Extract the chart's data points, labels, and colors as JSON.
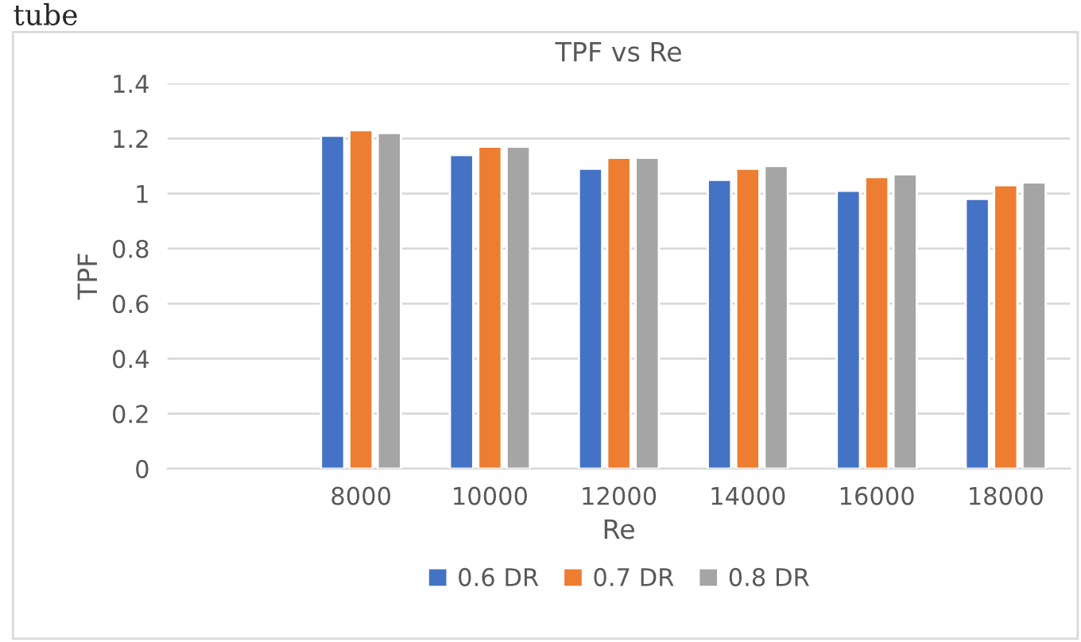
{
  "chart_data": {
    "type": "bar",
    "title": "TPF vs Re",
    "xlabel": "Re",
    "ylabel": "TPF",
    "categories": [
      null,
      "8000",
      "10000",
      "12000",
      "14000",
      "16000",
      "18000"
    ],
    "series": [
      {
        "name": "0.6 DR",
        "color": "#4472c4",
        "values": [
          null,
          1.21,
          1.14,
          1.09,
          1.05,
          1.01,
          0.98
        ]
      },
      {
        "name": "0.7 DR",
        "color": "#ed7d31",
        "values": [
          null,
          1.23,
          1.17,
          1.13,
          1.09,
          1.06,
          1.03
        ]
      },
      {
        "name": "0.8 DR",
        "color": "#a5a5a5",
        "values": [
          null,
          1.22,
          1.17,
          1.13,
          1.1,
          1.07,
          1.04
        ]
      }
    ],
    "ylim": [
      0,
      1.4
    ],
    "yticks": [
      0,
      0.2,
      0.4,
      0.6,
      0.8,
      1,
      1.2,
      1.4
    ],
    "grid": "y",
    "legend": "bottom",
    "annotations": [
      "tube"
    ]
  }
}
